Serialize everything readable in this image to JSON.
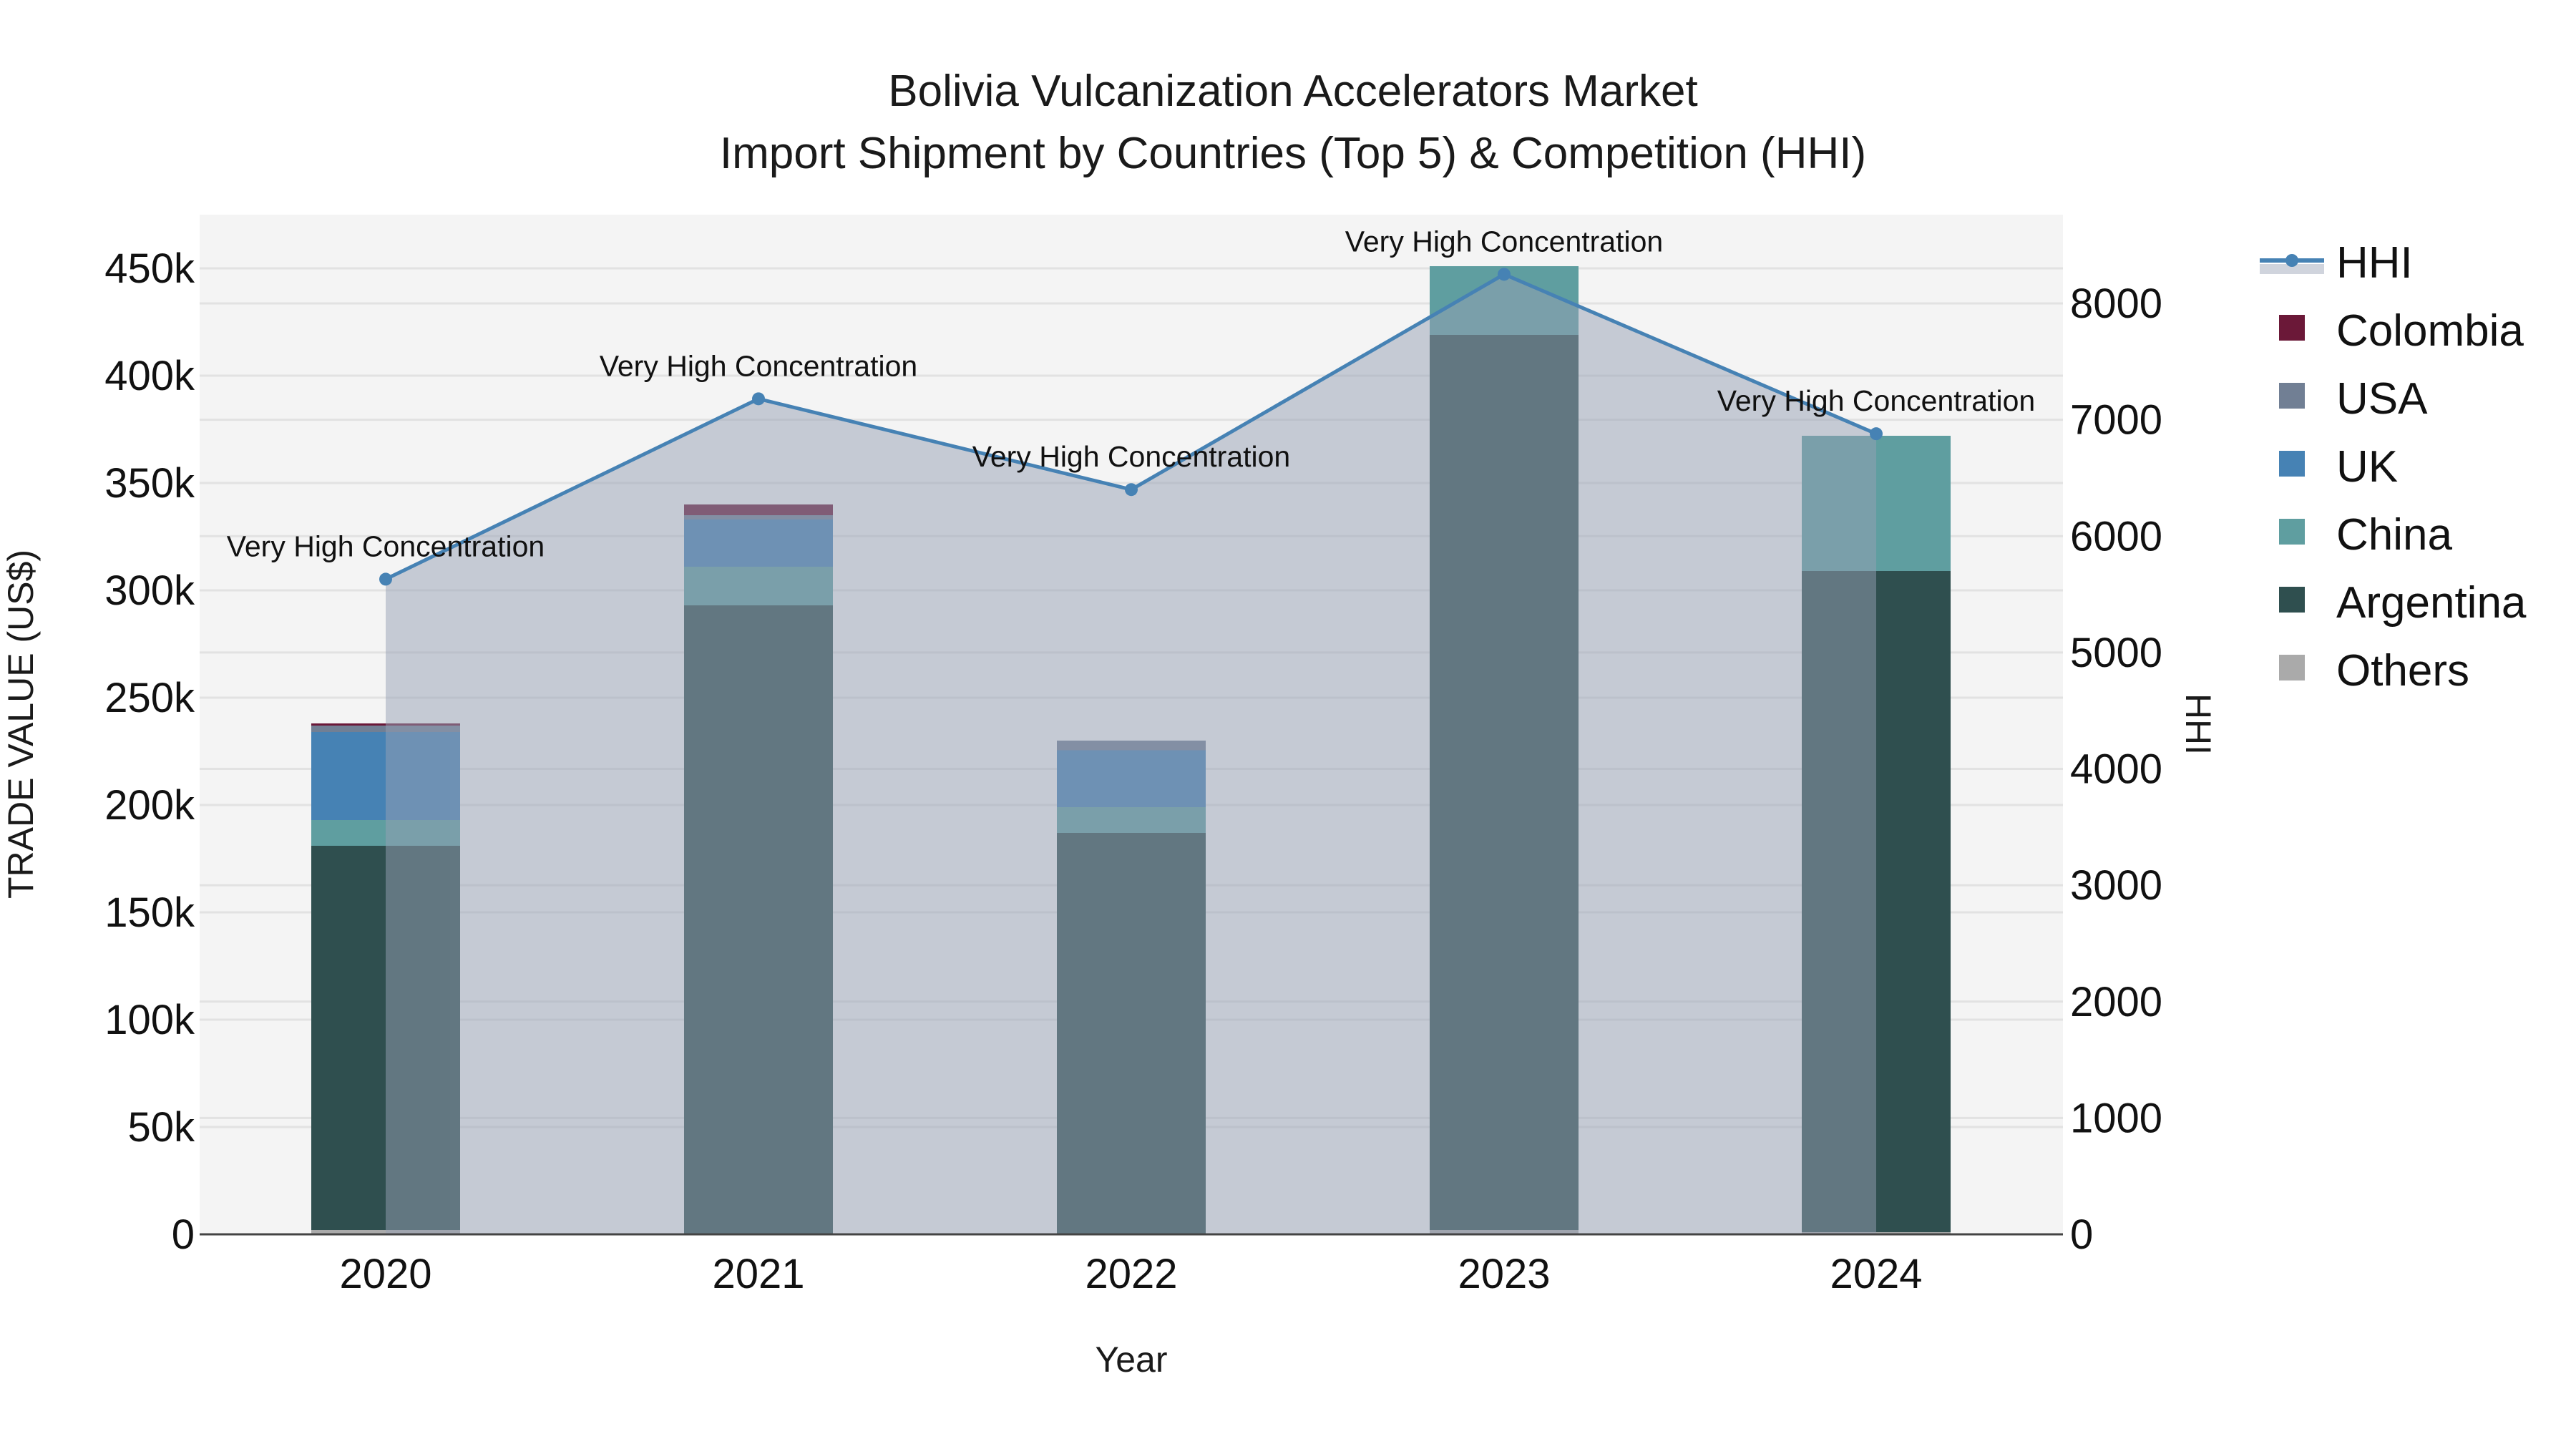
{
  "title": {
    "line1": "Bolivia Vulcanization Accelerators Market",
    "line2": "Import Shipment by Countries (Top 5) & Competition (HHI)"
  },
  "axes": {
    "x_title": "Year",
    "y_left_title": "TRADE VALUE (US$)",
    "y_right_title": "HHI",
    "y_left_ticks": [
      "0",
      "50k",
      "100k",
      "150k",
      "200k",
      "250k",
      "300k",
      "350k",
      "400k",
      "450k"
    ],
    "y_right_ticks": [
      "0",
      "1000",
      "2000",
      "3000",
      "4000",
      "5000",
      "6000",
      "7000",
      "8000"
    ]
  },
  "colors": {
    "Colombia": "#6b1838",
    "USA": "#717f94",
    "UK": "#4682b4",
    "China": "#5f9ea0",
    "Argentina": "#2f4f4f",
    "Others": "#aaaaaa",
    "HHI_line": "#4682b4",
    "HHI_fill": "rgba(150,160,180,0.5)",
    "plot_bg": "#f4f4f4",
    "grid": "#e2e2e2"
  },
  "legend": [
    {
      "name": "HHI",
      "type": "line"
    },
    {
      "name": "Colombia",
      "type": "bar"
    },
    {
      "name": "USA",
      "type": "bar"
    },
    {
      "name": "UK",
      "type": "bar"
    },
    {
      "name": "China",
      "type": "bar"
    },
    {
      "name": "Argentina",
      "type": "bar"
    },
    {
      "name": "Others",
      "type": "bar"
    }
  ],
  "annotations": [
    {
      "year": "2020",
      "text": "Very High Concentration"
    },
    {
      "year": "2021",
      "text": "Very High Concentration"
    },
    {
      "year": "2022",
      "text": "Very High Concentration"
    },
    {
      "year": "2023",
      "text": "Very High Concentration"
    },
    {
      "year": "2024",
      "text": "Very High Concentration"
    }
  ],
  "chart_data": {
    "type": "bar",
    "subtype": "stacked bar with line overlay (secondary axis)",
    "title": "Bolivia Vulcanization Accelerators Market — Import Shipment by Countries (Top 5) & Competition (HHI)",
    "xlabel": "Year",
    "ylabel": "TRADE VALUE (US$)",
    "y2label": "HHI",
    "categories": [
      "2020",
      "2021",
      "2022",
      "2023",
      "2024"
    ],
    "ylim": [
      0,
      475000
    ],
    "y2lim": [
      0,
      8760
    ],
    "grid": true,
    "legend_position": "right",
    "stack_order_bottom_to_top": [
      "Others",
      "Argentina",
      "China",
      "UK",
      "USA",
      "Colombia"
    ],
    "series": [
      {
        "name": "Others",
        "axis": "left",
        "values": [
          2000,
          500,
          300,
          2000,
          1000
        ]
      },
      {
        "name": "Argentina",
        "axis": "left",
        "values": [
          179000,
          292500,
          186700,
          417000,
          308000
        ]
      },
      {
        "name": "China",
        "axis": "left",
        "values": [
          12000,
          18000,
          12000,
          32000,
          63000
        ]
      },
      {
        "name": "UK",
        "axis": "left",
        "values": [
          41000,
          22000,
          26500,
          0,
          0
        ]
      },
      {
        "name": "USA",
        "axis": "left",
        "values": [
          3000,
          2000,
          4500,
          0,
          0
        ]
      },
      {
        "name": "Colombia",
        "axis": "left",
        "values": [
          1000,
          5000,
          0,
          0,
          0
        ]
      },
      {
        "name": "HHI",
        "axis": "right",
        "type": "line",
        "values": [
          5630,
          7180,
          6400,
          8250,
          6880
        ]
      }
    ],
    "totals": [
      238000,
      340000,
      230000,
      451000,
      372000
    ],
    "annotations": [
      "Very High Concentration",
      "Very High Concentration",
      "Very High Concentration",
      "Very High Concentration",
      "Very High Concentration"
    ]
  }
}
